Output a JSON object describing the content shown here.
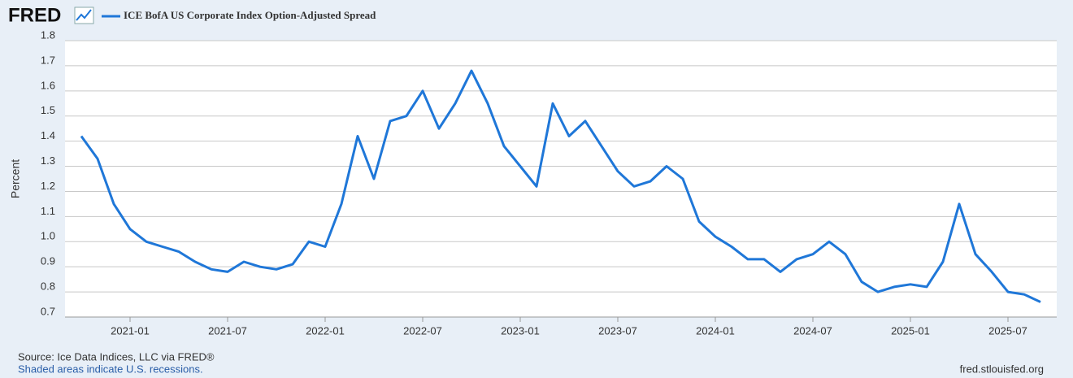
{
  "chart_data": {
    "type": "line",
    "logo": "FRED",
    "title": "ICE BofA US Corporate Index Option-Adjusted Spread",
    "y_label": "Percent",
    "source": "Source: Ice Data Indices, LLC via FRED®",
    "note": "Shaded areas indicate U.S. recessions.",
    "site": "fred.stlouisfed.org",
    "x": [
      "2020-10",
      "2020-11",
      "2020-12",
      "2021-01",
      "2021-02",
      "2021-03",
      "2021-04",
      "2021-05",
      "2021-06",
      "2021-07",
      "2021-08",
      "2021-09",
      "2021-10",
      "2021-11",
      "2021-12",
      "2022-01",
      "2022-02",
      "2022-03",
      "2022-04",
      "2022-05",
      "2022-06",
      "2022-07",
      "2022-08",
      "2022-09",
      "2022-10",
      "2022-11",
      "2022-12",
      "2023-01",
      "2023-02",
      "2023-03",
      "2023-04",
      "2023-05",
      "2023-06",
      "2023-07",
      "2023-08",
      "2023-09",
      "2023-10",
      "2023-11",
      "2023-12",
      "2024-01",
      "2024-02",
      "2024-03",
      "2024-04",
      "2024-05",
      "2024-06",
      "2024-07",
      "2024-08",
      "2024-09",
      "2024-10",
      "2024-11",
      "2024-12",
      "2025-01",
      "2025-02",
      "2025-03",
      "2025-04",
      "2025-05",
      "2025-06",
      "2025-07",
      "2025-08",
      "2025-09"
    ],
    "series": [
      {
        "name": "ICE BofA US Corporate Index Option-Adjusted Spread",
        "color": "#1f77d8",
        "values": [
          1.42,
          1.33,
          1.15,
          1.05,
          1.0,
          0.98,
          0.96,
          0.92,
          0.89,
          0.88,
          0.92,
          0.9,
          0.89,
          0.91,
          1.0,
          0.98,
          1.15,
          1.42,
          1.25,
          1.48,
          1.5,
          1.6,
          1.45,
          1.55,
          1.68,
          1.55,
          1.38,
          1.3,
          1.22,
          1.55,
          1.42,
          1.48,
          1.38,
          1.28,
          1.22,
          1.24,
          1.3,
          1.25,
          1.08,
          1.02,
          0.98,
          0.93,
          0.93,
          0.88,
          0.93,
          0.95,
          1.0,
          0.95,
          0.84,
          0.8,
          0.82,
          0.83,
          0.82,
          0.92,
          1.15,
          0.95,
          0.88,
          0.8,
          0.79,
          0.76
        ]
      }
    ],
    "xlim": [
      "2020-09",
      "2025-10"
    ],
    "xticks": [
      "2021-01",
      "2021-07",
      "2022-01",
      "2022-07",
      "2023-01",
      "2023-07",
      "2024-01",
      "2024-07",
      "2025-01",
      "2025-07"
    ],
    "ylim": [
      0.7,
      1.8
    ],
    "yticks": [
      0.7,
      0.8,
      0.9,
      {
        "value": 1,
        "label": "1.0"
      },
      1.1,
      1.2,
      1.3,
      1.4,
      1.5,
      1.6,
      1.7,
      1.8
    ],
    "grid": true
  }
}
